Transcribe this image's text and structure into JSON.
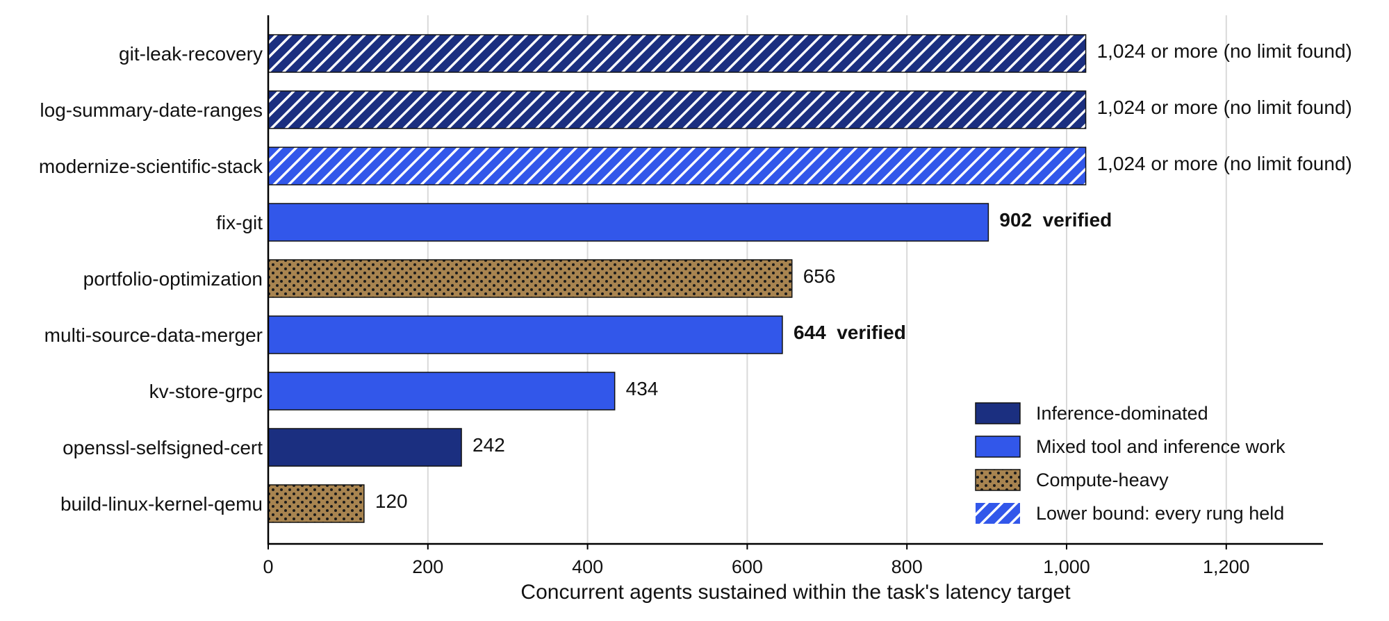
{
  "chart_data": {
    "type": "bar",
    "orientation": "horizontal",
    "xlabel": "Concurrent agents sustained within the task's latency target",
    "xlim": [
      0,
      1320
    ],
    "xticks": [
      0,
      200,
      400,
      600,
      800,
      1000,
      1200
    ],
    "xtick_labels": [
      "0",
      "200",
      "400",
      "600",
      "800",
      "1,000",
      "1,200"
    ],
    "grid": "vertical",
    "categories": [
      "git-leak-recovery",
      "log-summary-date-ranges",
      "modernize-scientific-stack",
      "fix-git",
      "portfolio-optimization",
      "multi-source-data-merger",
      "kv-store-grpc",
      "openssl-selfsigned-cert",
      "build-linux-kernel-qemu"
    ],
    "values": [
      1024,
      1024,
      1024,
      902,
      656,
      644,
      434,
      242,
      120
    ],
    "bar_groups": [
      "Inference-dominated",
      "Inference-dominated",
      "Mixed tool and inference work",
      "Mixed tool and inference work",
      "Compute-heavy",
      "Mixed tool and inference work",
      "Mixed tool and inference work",
      "Inference-dominated",
      "Compute-heavy"
    ],
    "lower_bound": [
      true,
      true,
      true,
      false,
      false,
      false,
      false,
      false,
      false
    ],
    "data_labels": [
      "1,024 or more (no limit found)",
      "1,024 or more (no limit found)",
      "1,024 or more (no limit found)",
      "902  verified",
      "656",
      "644  verified",
      "434",
      "242",
      "120"
    ],
    "data_label_bold": [
      false,
      false,
      false,
      true,
      false,
      true,
      false,
      false,
      false
    ],
    "legend": {
      "placement": "bottom-right",
      "entries": [
        {
          "label": "Inference-dominated",
          "style": "inference"
        },
        {
          "label": "Mixed tool and inference work",
          "style": "mixed"
        },
        {
          "label": "Compute-heavy",
          "style": "compute"
        },
        {
          "label": "Lower bound: every rung held",
          "style": "lower-bound"
        }
      ]
    },
    "colors": {
      "Inference-dominated": "#1b2f80",
      "Mixed tool and inference work": "#3257ea",
      "Compute-heavy": "#a88450",
      "hatch_lines": "#ffffff",
      "dots": "#1a1a1a",
      "grid": "#d9d9d9",
      "axis": "#000000"
    }
  }
}
